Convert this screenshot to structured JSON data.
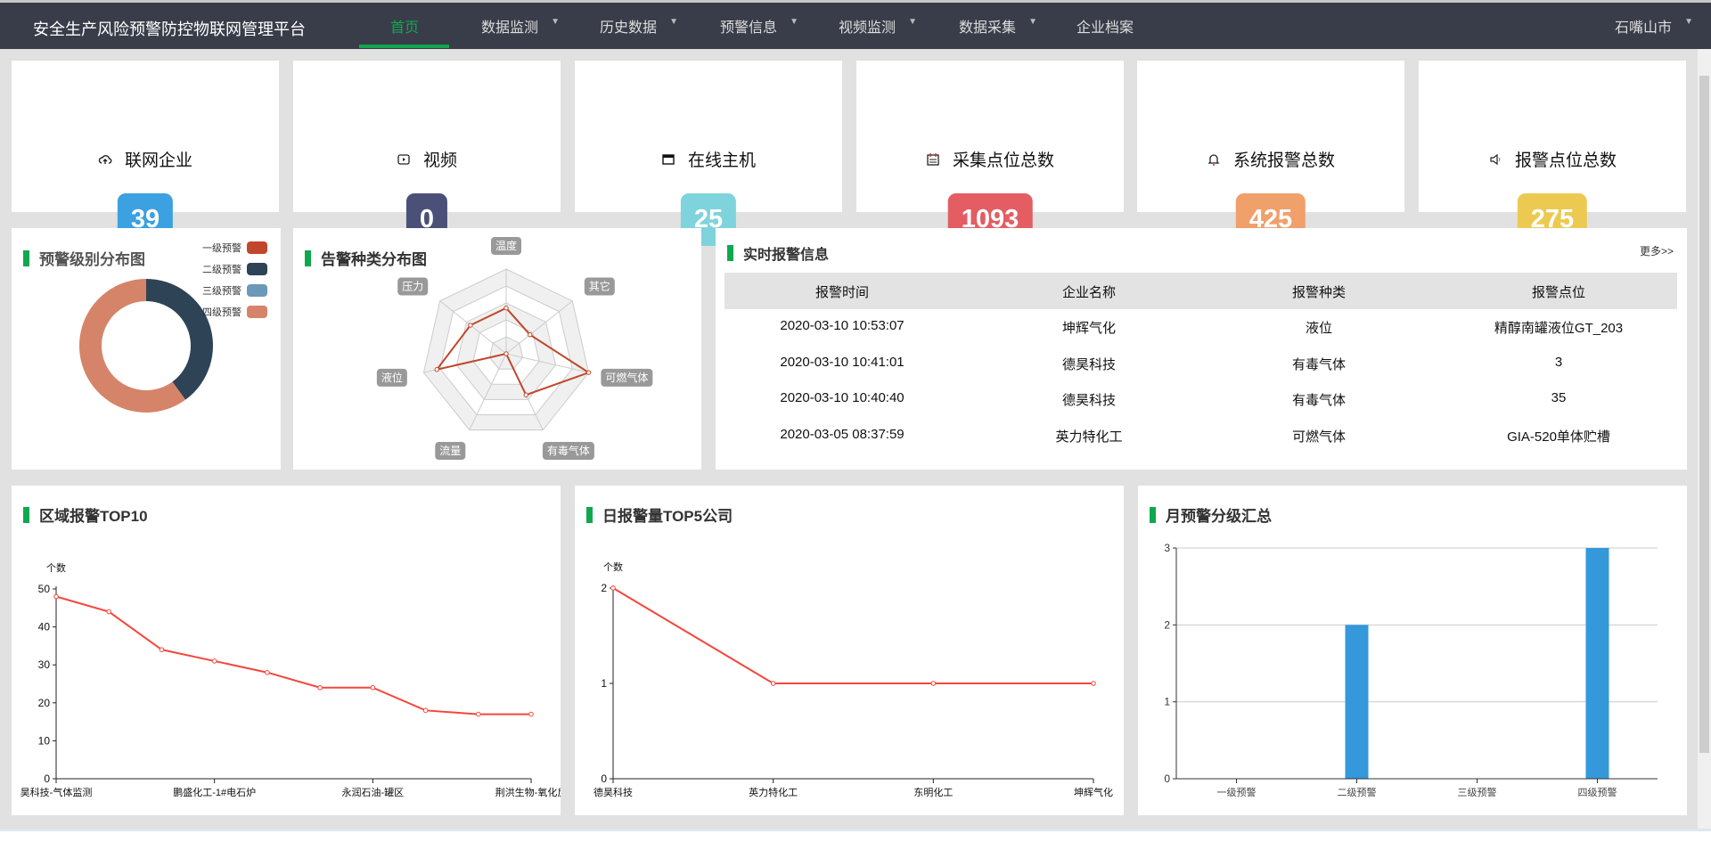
{
  "header": {
    "title": "安全生产风险预警防控物联网管理平台",
    "nav": [
      {
        "label": "首页",
        "active": true,
        "dropdown": false
      },
      {
        "label": "数据监测",
        "dropdown": true
      },
      {
        "label": "历史数据",
        "dropdown": true
      },
      {
        "label": "预警信息",
        "dropdown": true
      },
      {
        "label": "视频监测",
        "dropdown": true
      },
      {
        "label": "数据采集",
        "dropdown": true
      },
      {
        "label": "企业档案",
        "dropdown": false
      }
    ],
    "region": "石嘴山市",
    "accent": "#10a84f"
  },
  "stats": [
    {
      "label": "联网企业",
      "value": "39",
      "icon": "cloud-upload-icon",
      "color": "#3ba1e0"
    },
    {
      "label": "视频",
      "value": "0",
      "icon": "video-icon",
      "color": "#4a5078"
    },
    {
      "label": "在线主机",
      "value": "25",
      "icon": "window-icon",
      "color": "#7fd3dc"
    },
    {
      "label": "采集点位总数",
      "value": "1093",
      "icon": "calendar-icon",
      "color": "#e35d62"
    },
    {
      "label": "系统报警总数",
      "value": "425",
      "icon": "bell-icon",
      "color": "#f0a06a"
    },
    {
      "label": "报警点位总数",
      "value": "275",
      "icon": "speaker-icon",
      "color": "#ecca52"
    }
  ],
  "realtime": {
    "title": "实时报警信息",
    "more": "更多>>",
    "columns": [
      "报警时间",
      "企业名称",
      "报警种类",
      "报警点位"
    ],
    "rows": [
      [
        "2020-03-10 10:53:07",
        "坤辉气化",
        "液位",
        "精醇南罐液位GT_203"
      ],
      [
        "2020-03-10 10:41:01",
        "德昊科技",
        "有毒气体",
        "3"
      ],
      [
        "2020-03-10 10:40:40",
        "德昊科技",
        "有毒气体",
        "35"
      ],
      [
        "2020-03-05 08:37:59",
        "英力特化工",
        "可燃气体",
        "GIA-520单体贮槽"
      ]
    ]
  },
  "chart_data": [
    {
      "type": "pie",
      "title": "预警级别分布图",
      "donut": true,
      "legend_position": "top-right",
      "categories": [
        "一级预警",
        "二级预警",
        "三级预警",
        "四级预警"
      ],
      "values": [
        0,
        2,
        0,
        3
      ],
      "colors": [
        "#c0472c",
        "#2e4356",
        "#6a9ab8",
        "#d5846a"
      ]
    },
    {
      "type": "radar",
      "title": "告警种类分布图",
      "indicators": [
        "温度",
        "其它",
        "可燃气体",
        "有毒气体",
        "流量",
        "液位",
        "压力"
      ],
      "values": [
        0.54,
        0.36,
        1.0,
        0.54,
        0.0,
        0.84,
        0.54
      ],
      "color": "#c0472c"
    },
    {
      "type": "line",
      "title": "区域报警TOP10",
      "ylabel": "个数",
      "ylim": [
        0,
        50
      ],
      "yticks": [
        0,
        10,
        20,
        30,
        40,
        50
      ],
      "categories": [
        "昊科技-气体监测",
        "",
        "",
        "鹏盛化工-1#电石炉",
        "",
        "",
        "永润石油-罐区",
        "",
        "",
        "荆洪生物-氧化反"
      ],
      "values": [
        48,
        44,
        34,
        31,
        28,
        24,
        24,
        18,
        17,
        17
      ],
      "color": "#f5463c",
      "grid": false
    },
    {
      "type": "line",
      "title": "日报警量TOP5公司",
      "ylabel": "个数",
      "ylim": [
        0,
        2
      ],
      "yticks": [
        0,
        1,
        2
      ],
      "categories": [
        "德昊科技",
        "英力特化工",
        "东明化工",
        "坤辉气化"
      ],
      "values": [
        2,
        1,
        1,
        1
      ],
      "color": "#f5463c",
      "grid": false
    },
    {
      "type": "bar",
      "title": "月预警分级汇总",
      "ylim": [
        0,
        3
      ],
      "yticks": [
        0,
        1,
        2,
        3
      ],
      "categories": [
        "一级预警",
        "二级预警",
        "三级预警",
        "四级预警"
      ],
      "values": [
        0,
        2,
        0,
        3
      ],
      "color": "#3498db",
      "grid": true
    }
  ]
}
